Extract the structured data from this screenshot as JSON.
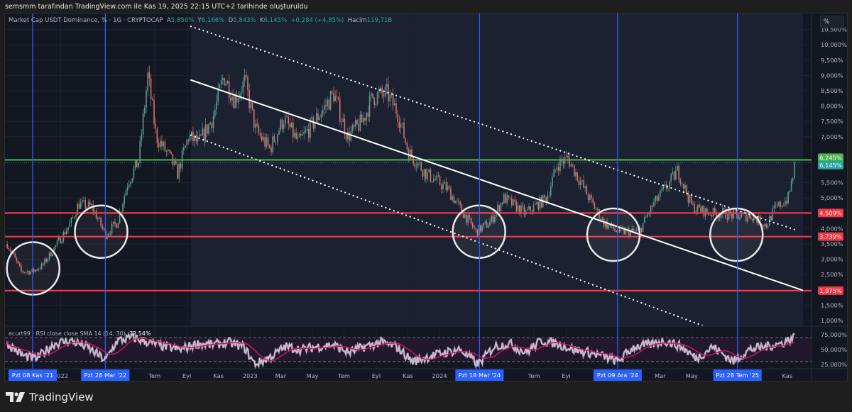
{
  "caption": "semsmm tarafından TradingView.com ile Kas 19, 2025 22:15 UTC+2 tarihinde oluşturuldu",
  "legend": {
    "symbol": "Market Cap USDT Dominance, % · 1G · CRYPTOCAP",
    "open_label": "A",
    "open": "5,856%",
    "high_label": "Y",
    "high": "6,166%",
    "low_label": "D",
    "low": "5,843%",
    "close_label": "K",
    "close": "6,145%",
    "change": "+0,284 (+4,85%)",
    "volume_label": "Hacim",
    "volume": "119,71B"
  },
  "rsi_legend": {
    "title": "ecurt99 · RSI close close SMA 14 (14, 30)",
    "value": "72,54%"
  },
  "scale_button": "%",
  "brand": "TradingView",
  "colors": {
    "background": "#131722",
    "up": "#5a9e91",
    "down": "#d9706b",
    "green_level": "#4caf50",
    "red_level": "#f23645",
    "marker_line": "#2962ff",
    "rsi_line": "#e1bee7",
    "rsi_ma": "#c2185b",
    "last_price": "#26a69a"
  },
  "chart_data": {
    "type": "candlestick",
    "title": "",
    "y_axis": {
      "unit": "%",
      "range": [
        0.7,
        10.6
      ],
      "ticks": [
        "1,000%",
        "1,500%",
        "2,500%",
        "3,000%",
        "3,500%",
        "4,000%",
        "5,000%",
        "5,500%",
        "7,000%",
        "7,500%",
        "8,000%",
        "8,500%",
        "9,000%",
        "9,500%",
        "10,000%",
        "10,500%"
      ],
      "tick_values": [
        1,
        1.5,
        2.5,
        3,
        3.5,
        4,
        5,
        5.5,
        7,
        7.5,
        8,
        8.5,
        9,
        9.5,
        10,
        10.5
      ]
    },
    "x_axis": {
      "range": [
        "2021-09-12",
        "2025-12-10"
      ],
      "labels": [
        {
          "date": "2022-01-01",
          "text": "2022"
        },
        {
          "date": "2022-07-01",
          "text": "Tem"
        },
        {
          "date": "2022-09-01",
          "text": "Eyl"
        },
        {
          "date": "2022-11-01",
          "text": "Kas"
        },
        {
          "date": "2023-01-01",
          "text": "2023"
        },
        {
          "date": "2023-03-01",
          "text": "Mar"
        },
        {
          "date": "2023-05-01",
          "text": "May"
        },
        {
          "date": "2023-07-01",
          "text": "Tem"
        },
        {
          "date": "2023-09-01",
          "text": "Eyl"
        },
        {
          "date": "2023-11-01",
          "text": "Kas"
        },
        {
          "date": "2024-01-01",
          "text": "2024"
        },
        {
          "date": "2024-07-01",
          "text": "Tem"
        },
        {
          "date": "2024-09-01",
          "text": "Eyl"
        },
        {
          "date": "2025-03-01",
          "text": "Mar"
        },
        {
          "date": "2025-05-01",
          "text": "May"
        },
        {
          "date": "2025-11-01",
          "text": "Kas"
        }
      ]
    },
    "price_points": [
      [
        "2021-09-20",
        3.5
      ],
      [
        "2021-10-17",
        2.6
      ],
      [
        "2021-11-08",
        2.6
      ],
      [
        "2021-11-27",
        2.8
      ],
      [
        "2021-12-25",
        3.5
      ],
      [
        "2022-01-21",
        4.2
      ],
      [
        "2022-02-04",
        4.8
      ],
      [
        "2022-03-03",
        4.7
      ],
      [
        "2022-03-28",
        3.8
      ],
      [
        "2022-04-20",
        4.2
      ],
      [
        "2022-05-10",
        5.5
      ],
      [
        "2022-05-31",
        6.2
      ],
      [
        "2022-06-18",
        9.0
      ],
      [
        "2022-07-04",
        7.0
      ],
      [
        "2022-07-31",
        6.3
      ],
      [
        "2022-08-14",
        5.8
      ],
      [
        "2022-09-04",
        7.0
      ],
      [
        "2022-09-24",
        6.8
      ],
      [
        "2022-10-21",
        7.6
      ],
      [
        "2022-11-11",
        9.0
      ],
      [
        "2022-12-02",
        8.2
      ],
      [
        "2022-12-22",
        8.8
      ],
      [
        "2023-01-12",
        7.2
      ],
      [
        "2023-02-08",
        6.6
      ],
      [
        "2023-03-07",
        7.6
      ],
      [
        "2023-04-04",
        6.8
      ],
      [
        "2023-05-01",
        7.4
      ],
      [
        "2023-06-11",
        8.4
      ],
      [
        "2023-07-08",
        7.0
      ],
      [
        "2023-08-05",
        7.5
      ],
      [
        "2023-08-25",
        8.3
      ],
      [
        "2023-09-22",
        8.4
      ],
      [
        "2023-10-12",
        7.8
      ],
      [
        "2023-11-02",
        6.5
      ],
      [
        "2023-12-06",
        5.8
      ],
      [
        "2024-01-16",
        5.3
      ],
      [
        "2024-02-12",
        4.6
      ],
      [
        "2024-03-11",
        3.9
      ],
      [
        "2024-04-07",
        4.2
      ],
      [
        "2024-05-04",
        5.0
      ],
      [
        "2024-06-14",
        4.5
      ],
      [
        "2024-07-25",
        5.0
      ],
      [
        "2024-08-15",
        6.1
      ],
      [
        "2024-09-04",
        6.3
      ],
      [
        "2024-10-15",
        5.0
      ],
      [
        "2024-11-12",
        4.2
      ],
      [
        "2024-12-09",
        3.9
      ],
      [
        "2025-01-19",
        3.9
      ],
      [
        "2025-02-16",
        4.8
      ],
      [
        "2025-03-15",
        5.4
      ],
      [
        "2025-04-04",
        5.9
      ],
      [
        "2025-05-02",
        4.7
      ],
      [
        "2025-06-05",
        4.5
      ],
      [
        "2025-07-02",
        4.5
      ],
      [
        "2025-07-29",
        4.4
      ],
      [
        "2025-08-26",
        4.4
      ],
      [
        "2025-09-22",
        4.1
      ],
      [
        "2025-10-06",
        4.6
      ],
      [
        "2025-11-03",
        5.0
      ],
      [
        "2025-11-16",
        6.1
      ]
    ],
    "horizontal_levels": [
      {
        "value": 6.245,
        "label": "6,245%",
        "color": "#4caf50"
      },
      {
        "value": 4.509,
        "label": "4,509%",
        "color": "#f23645"
      },
      {
        "value": 3.739,
        "label": "3,739%",
        "color": "#f23645"
      },
      {
        "value": 1.975,
        "label": "1,975%",
        "color": "#f23645"
      }
    ],
    "last_price": {
      "value": 6.145,
      "label": "6,145%"
    },
    "vertical_markers": [
      {
        "date": "2021-11-08",
        "label": "Pzt 08 Kas '21"
      },
      {
        "date": "2022-03-28",
        "label": "Pzt 28 Mar '22"
      },
      {
        "date": "2024-03-18",
        "label": "Pzt 18 Mar '24"
      },
      {
        "date": "2024-12-09",
        "label": "Pzt 09 Ara '24"
      },
      {
        "date": "2025-07-28",
        "label": "Pzt 28 Tem '25"
      }
    ],
    "trend_lines": [
      {
        "style": "dotted",
        "from": [
          "2022-09-09",
          10.6
        ],
        "to": [
          "2025-11-22",
          3.93
        ]
      },
      {
        "style": "solid",
        "from": [
          "2022-09-09",
          8.85
        ],
        "to": [
          "2025-11-30",
          1.99
        ]
      },
      {
        "style": "dotted",
        "from": [
          "2022-09-09",
          7.05
        ],
        "to": [
          "2025-10-01",
          0.0
        ]
      }
    ],
    "circles": [
      {
        "date": "2021-11-09",
        "value": 2.7
      },
      {
        "date": "2022-03-20",
        "value": 3.9
      },
      {
        "date": "2024-03-17",
        "value": 3.9
      },
      {
        "date": "2024-12-01",
        "value": 3.8
      },
      {
        "date": "2025-07-26",
        "value": 3.8
      }
    ],
    "rsi": {
      "range": [
        20,
        80
      ],
      "bands": [
        30,
        70
      ],
      "ticks": [
        "75,000%",
        "50,000%",
        "25,000%"
      ],
      "tick_values": [
        75,
        50,
        25
      ],
      "points": [
        [
          "2021-09-20",
          60
        ],
        [
          "2021-10-20",
          40
        ],
        [
          "2021-11-15",
          35
        ],
        [
          "2021-12-20",
          60
        ],
        [
          "2022-01-20",
          65
        ],
        [
          "2022-02-20",
          55
        ],
        [
          "2022-03-28",
          32
        ],
        [
          "2022-04-20",
          65
        ],
        [
          "2022-05-20",
          70
        ],
        [
          "2022-06-20",
          62
        ],
        [
          "2022-07-20",
          55
        ],
        [
          "2022-08-20",
          50
        ],
        [
          "2022-09-20",
          60
        ],
        [
          "2022-10-20",
          58
        ],
        [
          "2022-11-20",
          62
        ],
        [
          "2022-12-20",
          55
        ],
        [
          "2023-01-10",
          25
        ],
        [
          "2023-02-10",
          38
        ],
        [
          "2023-03-10",
          55
        ],
        [
          "2023-04-10",
          50
        ],
        [
          "2023-05-10",
          55
        ],
        [
          "2023-06-10",
          58
        ],
        [
          "2023-07-10",
          45
        ],
        [
          "2023-08-10",
          55
        ],
        [
          "2023-09-10",
          62
        ],
        [
          "2023-10-10",
          55
        ],
        [
          "2023-11-10",
          30
        ],
        [
          "2023-12-10",
          38
        ],
        [
          "2024-01-10",
          45
        ],
        [
          "2024-02-10",
          50
        ],
        [
          "2024-03-15",
          25
        ],
        [
          "2024-04-15",
          55
        ],
        [
          "2024-05-15",
          60
        ],
        [
          "2024-06-15",
          45
        ],
        [
          "2024-07-15",
          65
        ],
        [
          "2024-08-15",
          60
        ],
        [
          "2024-09-15",
          50
        ],
        [
          "2024-10-15",
          45
        ],
        [
          "2024-11-15",
          38
        ],
        [
          "2024-12-09",
          30
        ],
        [
          "2025-01-10",
          55
        ],
        [
          "2025-02-10",
          58
        ],
        [
          "2025-03-10",
          65
        ],
        [
          "2025-04-10",
          55
        ],
        [
          "2025-05-10",
          35
        ],
        [
          "2025-06-10",
          55
        ],
        [
          "2025-07-20",
          30
        ],
        [
          "2025-08-20",
          50
        ],
        [
          "2025-09-20",
          55
        ],
        [
          "2025-10-20",
          60
        ],
        [
          "2025-11-16",
          72
        ]
      ]
    }
  }
}
